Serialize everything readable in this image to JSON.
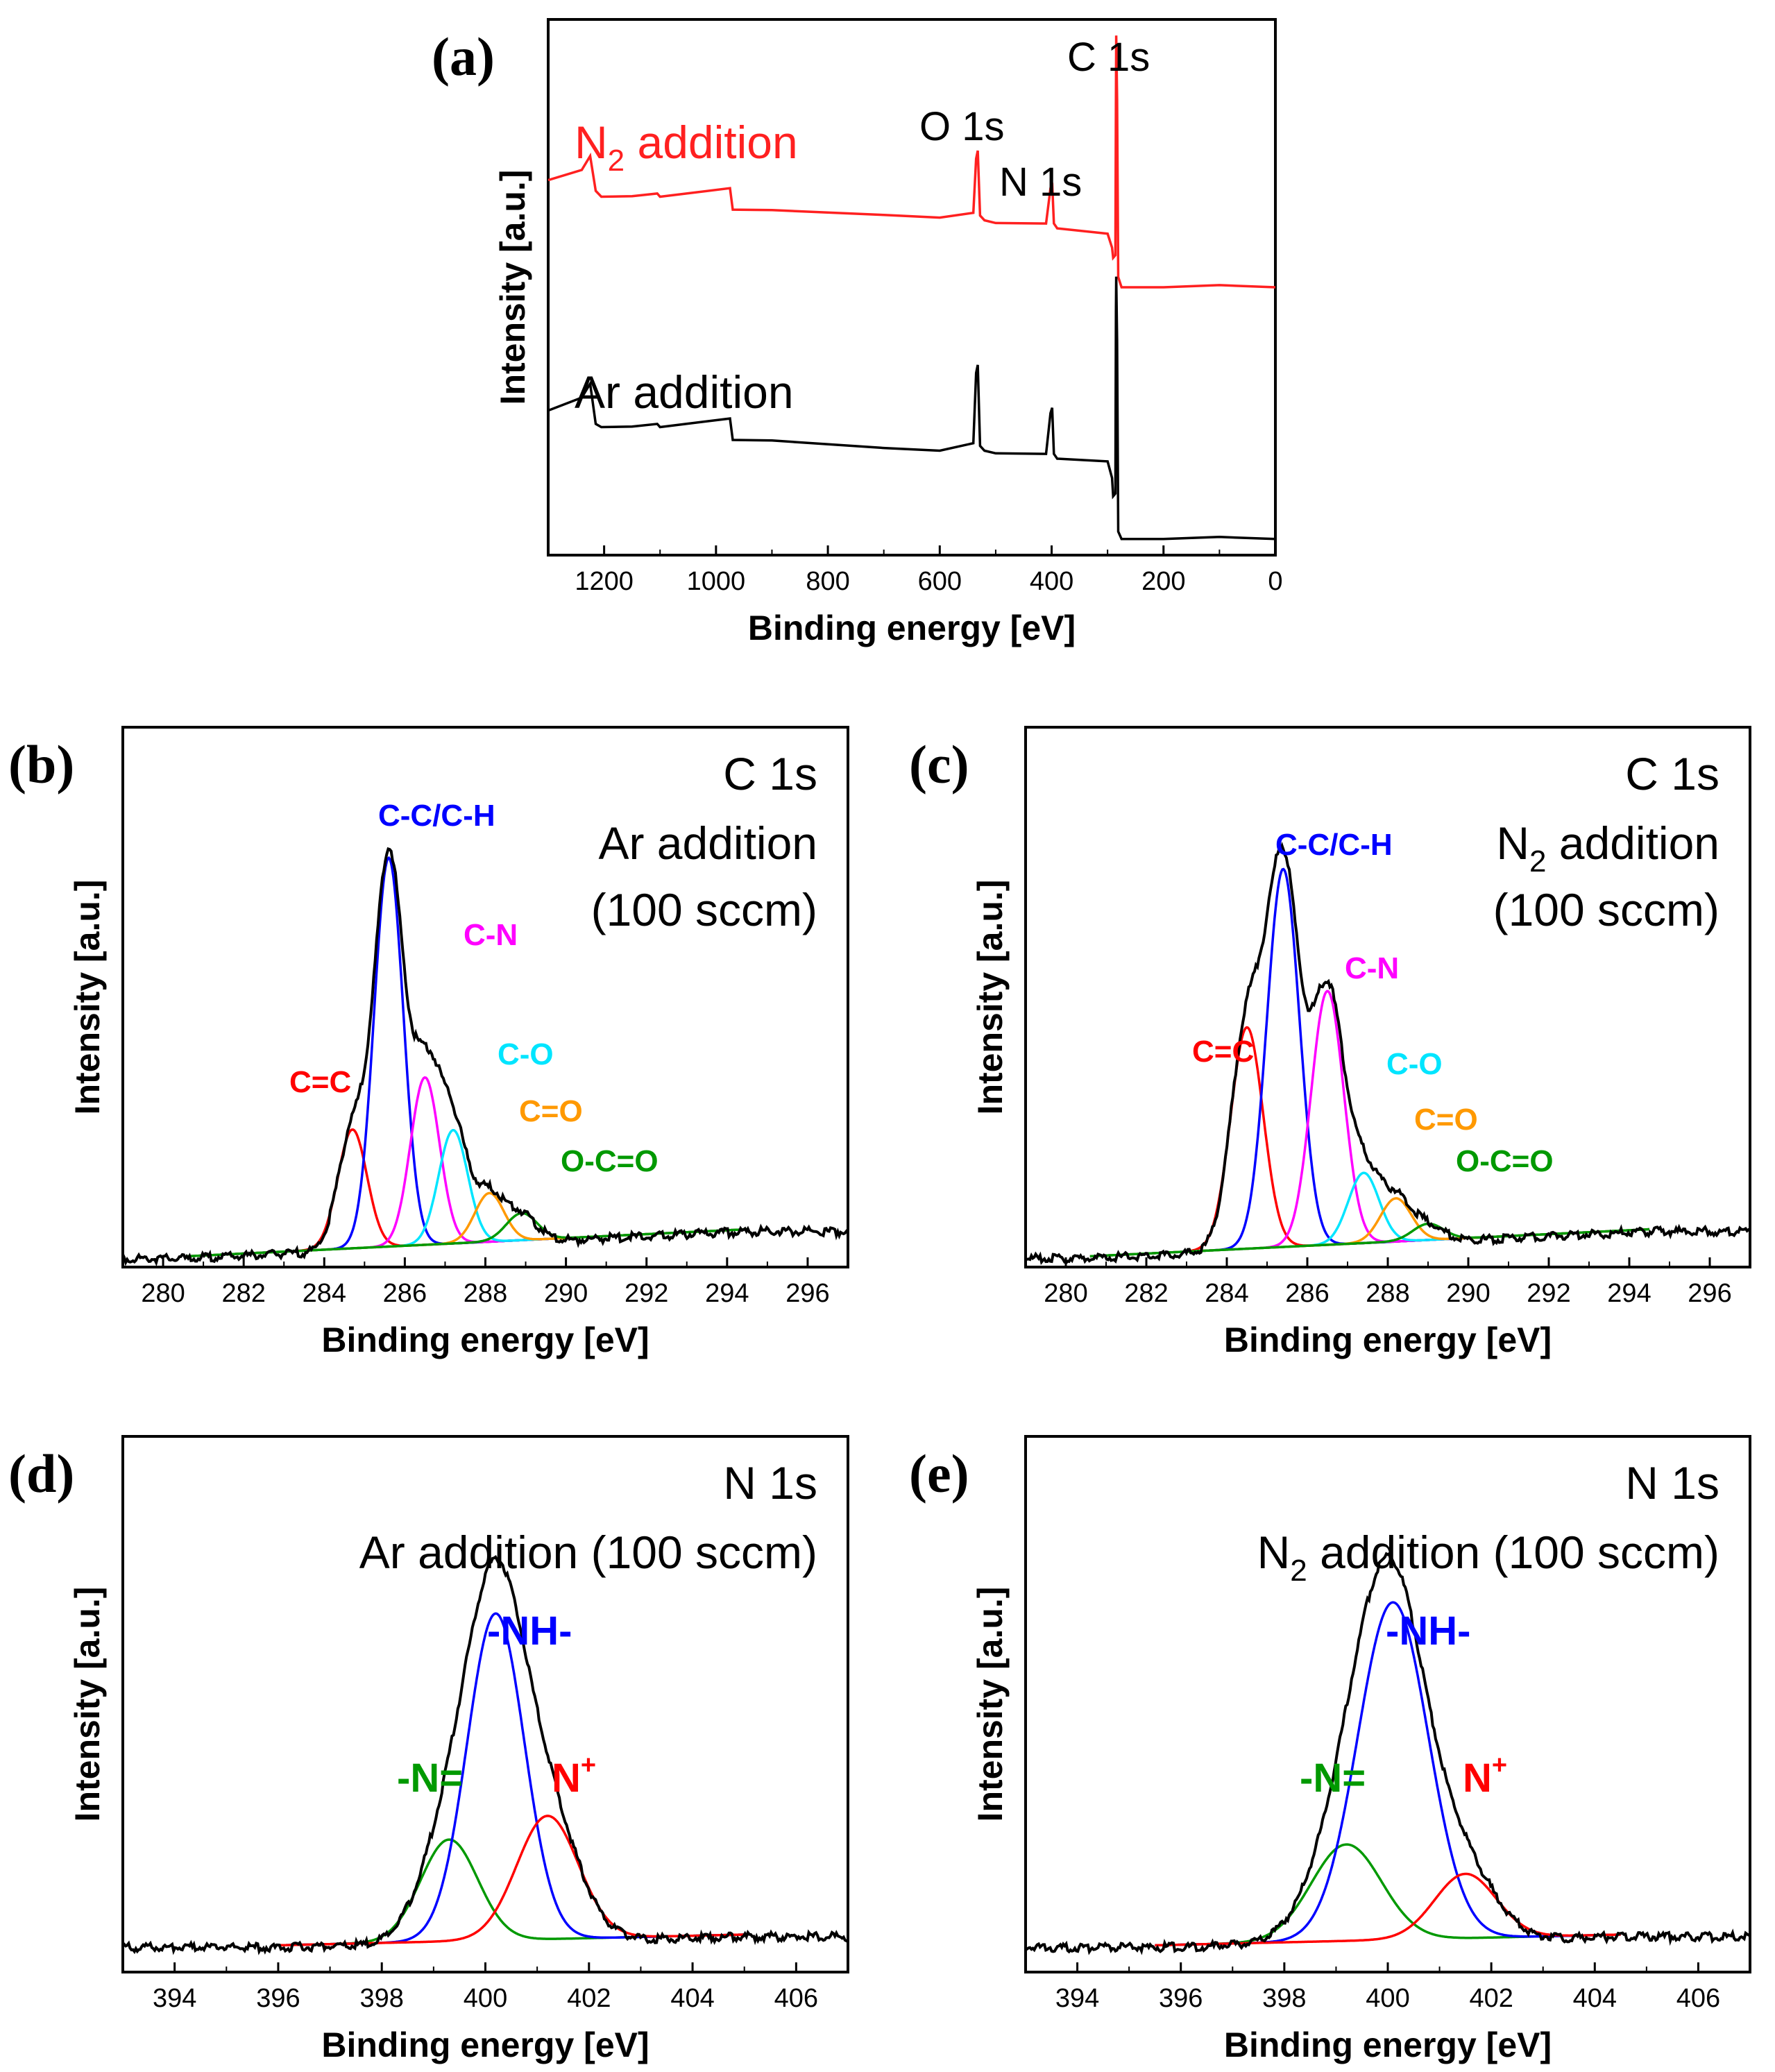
{
  "chart_data": [
    {
      "id": "a",
      "type": "line",
      "panel_label": "(a)",
      "xlabel": "Binding energy [eV]",
      "ylabel": "Intensity [a.u.]",
      "xlim": [
        1300,
        0
      ],
      "ylim": [
        0,
        10
      ],
      "xticks": [
        1200,
        1000,
        800,
        600,
        400,
        200,
        0
      ],
      "peak_labels": [
        "O 1s",
        "N 1s",
        "C 1s"
      ],
      "series": [
        {
          "name": "N2 addition",
          "label_main": "N",
          "label_sub": "2",
          "label_rest": " addition",
          "color": "#ff2020",
          "x": [
            1300,
            1240,
            1225,
            1215,
            1205,
            1150,
            1105,
            1100,
            975,
            970,
            900,
            700,
            600,
            540,
            535,
            532,
            528,
            520,
            500,
            410,
            402,
            399,
            396,
            390,
            300,
            292,
            290,
            286,
            285,
            284.5,
            283,
            281,
            275,
            200,
            100,
            0
          ],
          "y": [
            7.0,
            7.15,
            7.45,
            6.8,
            6.65,
            6.7,
            6.75,
            6.65,
            6.85,
            6.45,
            6.4,
            6.35,
            6.3,
            6.35,
            7.4,
            7.55,
            6.3,
            6.25,
            6.2,
            6.15,
            6.85,
            6.95,
            6.15,
            6.1,
            6.0,
            5.7,
            5.55,
            5.6,
            8.5,
            9.7,
            8.5,
            5.15,
            5.0,
            5.0,
            5.0,
            5.0
          ]
        },
        {
          "name": "Ar addition",
          "label_main": "Ar addition",
          "label_sub": "",
          "label_rest": "",
          "color": "#000000",
          "x": [
            1300,
            1240,
            1225,
            1215,
            1205,
            1150,
            1105,
            1100,
            975,
            970,
            900,
            700,
            600,
            540,
            535,
            532,
            528,
            520,
            500,
            410,
            402,
            399,
            396,
            390,
            300,
            292,
            290,
            286,
            285,
            284.5,
            283,
            281,
            275,
            200,
            100,
            0
          ],
          "y": [
            2.7,
            2.9,
            3.2,
            2.45,
            2.35,
            2.4,
            2.45,
            2.35,
            2.55,
            2.15,
            2.1,
            2.0,
            1.95,
            2.05,
            3.4,
            3.55,
            2.0,
            1.95,
            1.9,
            1.85,
            2.65,
            2.75,
            1.85,
            1.8,
            1.75,
            1.4,
            1.1,
            1.15,
            4.5,
            5.2,
            4.0,
            0.4,
            0.3,
            0.3,
            0.3,
            0.3
          ]
        }
      ],
      "series_label_texts": [
        "N",
        "2",
        " addition",
        "Ar addition"
      ]
    },
    {
      "id": "b",
      "type": "line",
      "panel_label": "(b)",
      "xlabel": "Binding energy [eV]",
      "ylabel": "Intensity [a.u.]",
      "xlim": [
        279,
        297
      ],
      "ylim": [
        0,
        10
      ],
      "xticks": [
        280,
        282,
        284,
        286,
        288,
        290,
        292,
        294,
        296
      ],
      "title_lines": [
        "C 1s",
        "Ar addition",
        "(100 sccm)"
      ],
      "title_sub": "",
      "baseline": 0.2,
      "background_start": 0.0,
      "background_end": 0.5,
      "envelope": {
        "name": "Envelope",
        "color": "#000000",
        "x_range": [
          279,
          297
        ]
      },
      "components": [
        {
          "name": "C=C",
          "center": 284.7,
          "height": 2.2,
          "fwhm": 0.85,
          "color": "#ff0000"
        },
        {
          "name": "C-C/C-H",
          "center": 285.6,
          "height": 7.2,
          "fwhm": 0.85,
          "color": "#0000ff"
        },
        {
          "name": "C-N",
          "center": 286.5,
          "height": 3.1,
          "fwhm": 0.85,
          "color": "#ff00ff"
        },
        {
          "name": "C-O",
          "center": 287.2,
          "height": 2.1,
          "fwhm": 0.85,
          "color": "#00e5ff"
        },
        {
          "name": "C=O",
          "center": 288.1,
          "height": 0.9,
          "fwhm": 0.85,
          "color": "#ff9900"
        },
        {
          "name": "O-C=O",
          "center": 288.9,
          "height": 0.5,
          "fwhm": 0.9,
          "color": "#009900"
        }
      ],
      "fit_range": [
        280.6,
        294.5
      ]
    },
    {
      "id": "c",
      "type": "line",
      "panel_label": "(c)",
      "xlabel": "Binding energy [eV]",
      "ylabel": "Intensity [a.u.]",
      "xlim": [
        279,
        297
      ],
      "ylim": [
        0,
        10
      ],
      "xticks": [
        280,
        282,
        284,
        286,
        288,
        290,
        292,
        294,
        296
      ],
      "title_lines": [
        "C 1s",
        "N",
        "2",
        " addition",
        "(100 sccm)"
      ],
      "title_sub": "2",
      "baseline": 0.2,
      "background_start": 0.0,
      "background_end": 0.5,
      "envelope": {
        "name": "Envelope",
        "color": "#000000",
        "x_range": [
          279,
          297
        ]
      },
      "components": [
        {
          "name": "C=C",
          "center": 284.5,
          "height": 4.1,
          "fwhm": 0.95,
          "color": "#ff0000"
        },
        {
          "name": "C-C/C-H",
          "center": 285.4,
          "height": 7.0,
          "fwhm": 0.95,
          "color": "#0000ff"
        },
        {
          "name": "C-N",
          "center": 286.5,
          "height": 4.7,
          "fwhm": 0.95,
          "color": "#ff00ff"
        },
        {
          "name": "C-O",
          "center": 287.4,
          "height": 1.3,
          "fwhm": 0.9,
          "color": "#00e5ff"
        },
        {
          "name": "C=O",
          "center": 288.2,
          "height": 0.8,
          "fwhm": 0.9,
          "color": "#ff9900"
        },
        {
          "name": "O-C=O",
          "center": 289.0,
          "height": 0.3,
          "fwhm": 0.9,
          "color": "#009900"
        }
      ],
      "fit_range": [
        280.6,
        294.5
      ]
    },
    {
      "id": "d",
      "type": "line",
      "panel_label": "(d)",
      "xlabel": "Binding energy [eV]",
      "ylabel": "Intensity [a.u.]",
      "xlim": [
        393,
        407
      ],
      "ylim": [
        0,
        10
      ],
      "xticks": [
        394,
        396,
        398,
        400,
        402,
        404,
        406
      ],
      "title_lines": [
        "N 1s",
        "Ar addition  (100 sccm)"
      ],
      "title_sub": "",
      "baseline": 0.3,
      "background_start": 0.2,
      "background_end": 0.4,
      "envelope": {
        "name": "Envelope",
        "color": "#000000",
        "x_range": [
          393,
          407
        ]
      },
      "components": [
        {
          "name": "-N=",
          "center": 399.3,
          "height": 1.9,
          "fwhm": 1.3,
          "color": "#009900"
        },
        {
          "name": "-NH-",
          "center": 400.2,
          "height": 6.1,
          "fwhm": 1.3,
          "color": "#0000ff"
        },
        {
          "name": "N+",
          "center": 401.2,
          "height": 2.3,
          "fwhm": 1.4,
          "color": "#ff0000"
        }
      ],
      "fit_range": [
        396,
        405
      ]
    },
    {
      "id": "e",
      "type": "line",
      "panel_label": "(e)",
      "xlabel": "Binding energy [eV]",
      "ylabel": "Intensity [a.u.]",
      "xlim": [
        393,
        407
      ],
      "ylim": [
        0,
        10
      ],
      "xticks": [
        394,
        396,
        398,
        400,
        402,
        404,
        406
      ],
      "title_lines": [
        "N 1s",
        "N",
        "2",
        " addition  (100 sccm)"
      ],
      "title_sub": "2",
      "baseline": 0.3,
      "background_start": 0.2,
      "background_end": 0.4,
      "envelope": {
        "name": "Envelope",
        "color": "#000000",
        "x_range": [
          393,
          407
        ]
      },
      "components": [
        {
          "name": "-N=",
          "center": 399.2,
          "height": 1.8,
          "fwhm": 1.6,
          "color": "#009900"
        },
        {
          "name": "-NH-",
          "center": 400.1,
          "height": 6.3,
          "fwhm": 1.6,
          "color": "#0000ff"
        },
        {
          "name": "N+",
          "center": 401.5,
          "height": 1.2,
          "fwhm": 1.4,
          "color": "#ff0000"
        }
      ],
      "fit_range": [
        395.5,
        404.5
      ]
    }
  ],
  "component_label_texts": {
    "b": [
      "C=C",
      "C-C/C-H",
      "C-N",
      "C-O",
      "C=O",
      "O-C=O"
    ],
    "c": [
      "C=C",
      "C-C/C-H",
      "C-N",
      "C-O",
      "C=O",
      "O-C=O"
    ],
    "d": [
      "-N=",
      "-NH-",
      "N",
      "+"
    ],
    "e": [
      "-N=",
      "-NH-",
      "N",
      "+"
    ]
  }
}
